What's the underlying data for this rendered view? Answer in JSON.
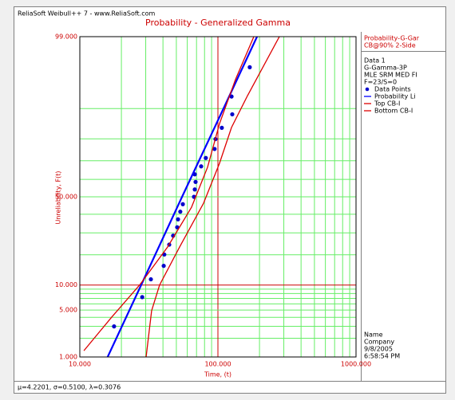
{
  "chart_data": {
    "type": "probability",
    "header": "ReliaSoft Weibull++ 7 - www.ReliaSoft.com",
    "title": "Probability - Generalized Gamma",
    "xlabel": "Time, (t)",
    "ylabel": "Unreliability, F(t)",
    "xscale": "log",
    "yscale": "normal-probability",
    "xlim": [
      10,
      1000
    ],
    "ylim": [
      1,
      99
    ],
    "xticks": [
      {
        "value": 10,
        "label": "10.000"
      },
      {
        "value": 100,
        "label": "100.000"
      },
      {
        "value": 1000,
        "label": "1000.000"
      }
    ],
    "yticks": [
      {
        "value": 1,
        "label": "1.000"
      },
      {
        "value": 5,
        "label": "5.000"
      },
      {
        "value": 10,
        "label": "10.000"
      },
      {
        "value": 50,
        "label": "50.000"
      },
      {
        "value": 99,
        "label": "99.000"
      }
    ],
    "xgrid": [
      20,
      30,
      40,
      50,
      60,
      70,
      80,
      90,
      200,
      300,
      400,
      500,
      600,
      700,
      800,
      900
    ],
    "ygrid": [
      2,
      3,
      4,
      6,
      7,
      8,
      9,
      20,
      30,
      40,
      60,
      70,
      80,
      90
    ],
    "grid": true,
    "plot_label": [
      "Probability-G-Gar",
      "CB@90% 2-Side"
    ],
    "info": [
      "Data 1",
      "G-Gamma-3P",
      "MLE SRM MED FI",
      "F=23/S=0"
    ],
    "series": [
      {
        "name": "Data Points",
        "kind": "points",
        "color": "#0000cc",
        "x": [
          17.7,
          28.3,
          32.7,
          40.5,
          40.9,
          44.4,
          47.4,
          50.7,
          51.4,
          53.4,
          55.7,
          67.1,
          68.0,
          68.9,
          68.0,
          75.6,
          81.7,
          94.6,
          96.0,
          106.7,
          127,
          125.5,
          170
        ],
        "values": [
          2.99,
          7.26,
          11.54,
          15.81,
          20.09,
          24.36,
          28.63,
          32.91,
          37.18,
          41.45,
          45.73,
          50.0,
          54.27,
          58.55,
          62.82,
          67.09,
          71.37,
          75.64,
          79.91,
          84.19,
          88.46,
          92.74,
          97.01
        ]
      },
      {
        "name": "Probability Li",
        "kind": "line",
        "color": "#0000ff",
        "x": [
          15.9,
          27.8,
          55.0,
          114,
          192
        ],
        "values": [
          1,
          10,
          50,
          91.2,
          99
        ]
      },
      {
        "name": "Top CB-I",
        "kind": "line",
        "color": "#dd0000",
        "x": [
          10.7,
          17.0,
          27.1,
          43.2,
          64.4,
          84.1,
          102.7,
          134.1,
          182
        ],
        "values": [
          1.27,
          4.02,
          10.0,
          23.3,
          44.0,
          66.6,
          85.6,
          95.6,
          99
        ]
      },
      {
        "name": "Bottom CB-I",
        "kind": "line",
        "color": "#dd0000",
        "x": [
          30.2,
          33.1,
          37.8,
          52.8,
          78.7,
          102.7,
          125.4,
          163.7,
          278.6
        ],
        "values": [
          1,
          4.9,
          10,
          23.3,
          46.3,
          68.7,
          84.3,
          92.9,
          99
        ]
      }
    ],
    "footer": [
      "Name",
      "Company",
      "9/8/2005",
      "6:58:54 PM"
    ],
    "parameters": "μ=4.2201, σ=0.5100, λ=0.3076"
  }
}
